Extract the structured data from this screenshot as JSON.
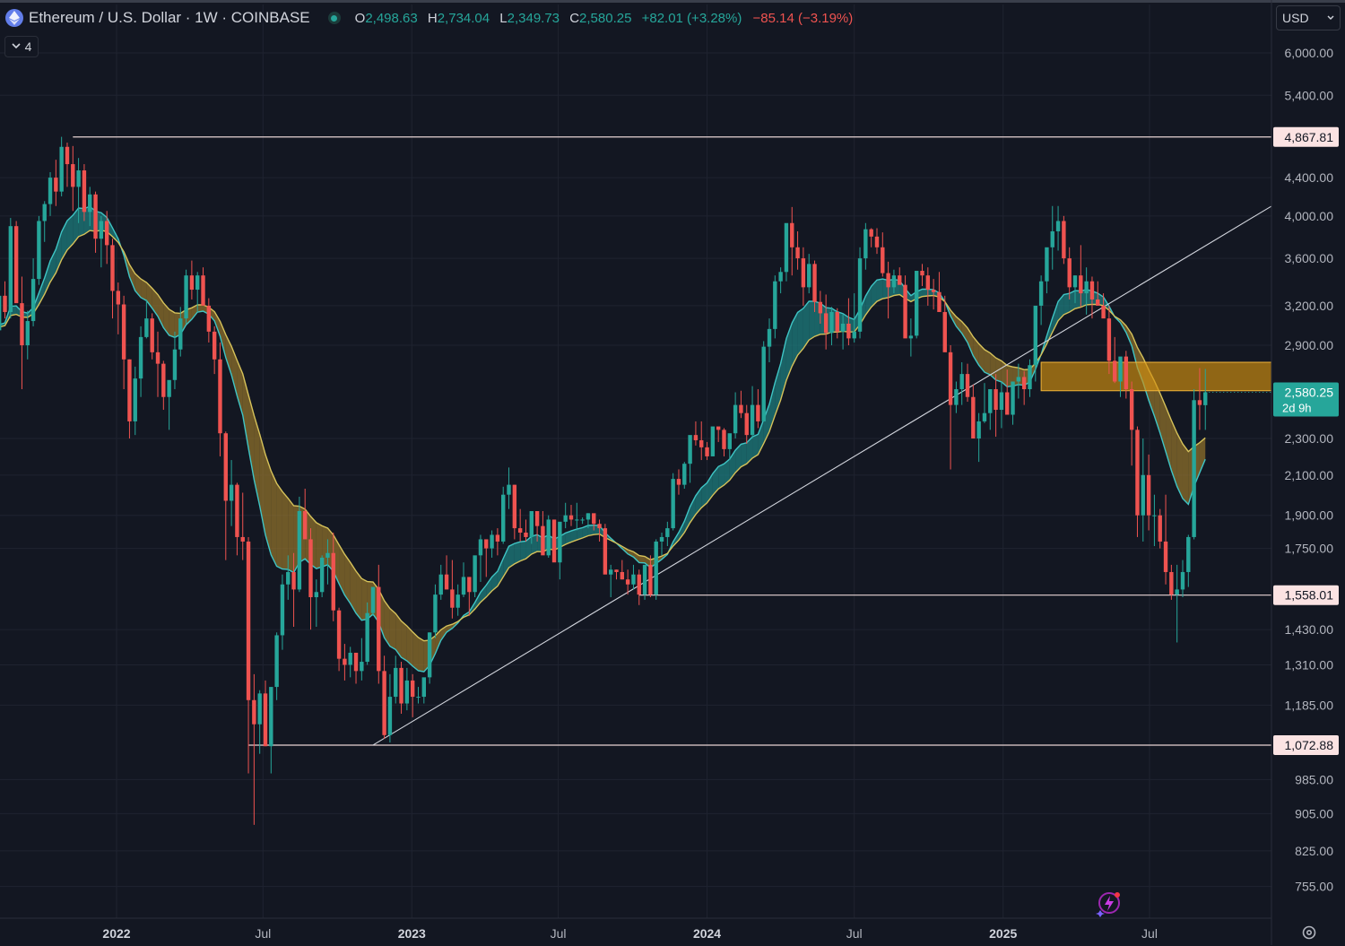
{
  "header": {
    "symbol_title": "Ethereum / U.S. Dollar · 1W · COINBASE",
    "ohlc": {
      "o_label": "O",
      "o_value": "2,498.63",
      "h_label": "H",
      "h_value": "2,734.04",
      "l_label": "L",
      "l_value": "2,349.73",
      "c_label": "C",
      "c_value": "2,580.25",
      "change": "+82.01 (+3.28%)",
      "extra_change": "−85.14 (−3.19%)"
    },
    "indicators_count": "4",
    "currency": "USD"
  },
  "colors": {
    "background": "#131722",
    "up": "#26a69a",
    "down": "#ef5350",
    "grid": "#1f2330",
    "level_line": "#e8d4d4",
    "zone": "#d4900f",
    "ribbon_bull": "#1e8c8c",
    "ribbon_bear": "#a07d2d"
  },
  "chart_data": {
    "type": "candlestick",
    "timeframe": "1W",
    "scale": "log",
    "ylim": [
      700,
      6600
    ],
    "x_tick_labels": [
      "2022",
      "Jul",
      "2023",
      "Jul",
      "2024",
      "Jul",
      "2025",
      "Jul"
    ],
    "x_tick_dates": [
      "2022-01-01",
      "2022-07-01",
      "2023-01-01",
      "2023-07-01",
      "2024-01-01",
      "2024-07-01",
      "2025-01-01",
      "2025-07-01"
    ],
    "y_tick_labels": [
      "6,000.00",
      "5,400.00",
      "4,400.00",
      "4,000.00",
      "3,600.00",
      "3,200.00",
      "2,900.00",
      "2,300.00",
      "2,100.00",
      "1,900.00",
      "1,750.00",
      "1,430.00",
      "1,310.00",
      "1,185.00",
      "985.00",
      "905.00",
      "825.00",
      "755.00"
    ],
    "y_tick_values": [
      6000,
      5400,
      4400,
      4000,
      3600,
      3200,
      2900,
      2300,
      2100,
      1900,
      1750,
      1430,
      1310,
      1185,
      985,
      905,
      825,
      755
    ],
    "last_price": {
      "value": 2580.25,
      "label": "2,580.25",
      "countdown": "2d 9h"
    },
    "horizontal_levels": [
      {
        "value": 4867.81,
        "label": "4,867.81",
        "from": "2021-11-08"
      },
      {
        "value": 1558.01,
        "label": "1,558.01",
        "from": "2023-10-09"
      },
      {
        "value": 1072.88,
        "label": "1,072.88",
        "from": "2022-06-13"
      }
    ],
    "zone": {
      "from": "2025-02-17",
      "top": 2780,
      "bottom": 2590
    },
    "trendline": {
      "p1": {
        "date": "2022-11-14",
        "value": 1073
      },
      "p2": {
        "date": "2025-08-04",
        "value": 3560
      }
    },
    "start_date": "2021-08-02",
    "weeks": [
      [
        3170,
        3240,
        2850,
        3010
      ],
      [
        3010,
        3350,
        2950,
        3280
      ],
      [
        3280,
        3400,
        3100,
        3150
      ],
      [
        3150,
        3980,
        3100,
        3900
      ],
      [
        3900,
        3950,
        3300,
        3220
      ],
      [
        3220,
        3440,
        2600,
        2900
      ],
      [
        2900,
        3160,
        2800,
        3080
      ],
      [
        3080,
        3600,
        3040,
        3420
      ],
      [
        3420,
        4000,
        3370,
        3950
      ],
      [
        3950,
        4150,
        3750,
        4120
      ],
      [
        4120,
        4460,
        4000,
        4400
      ],
      [
        4400,
        4600,
        4100,
        4250
      ],
      [
        4250,
        4870,
        4200,
        4750
      ],
      [
        4750,
        4800,
        4300,
        4550
      ],
      [
        4550,
        4760,
        4050,
        4300
      ],
      [
        4300,
        4620,
        3930,
        4480
      ],
      [
        4480,
        4550,
        3950,
        4040
      ],
      [
        4040,
        4300,
        3900,
        4220
      ],
      [
        4220,
        4250,
        3650,
        3780
      ],
      [
        3780,
        4000,
        3520,
        3950
      ],
      [
        3950,
        4050,
        3550,
        3720
      ],
      [
        3720,
        3780,
        3100,
        3320
      ],
      [
        3320,
        3390,
        2980,
        3210
      ],
      [
        3210,
        3280,
        2600,
        2800
      ],
      [
        2800,
        2800,
        2300,
        2400
      ],
      [
        2400,
        2750,
        2320,
        2670
      ],
      [
        2670,
        3040,
        2550,
        2960
      ],
      [
        2960,
        3250,
        2950,
        3100
      ],
      [
        3100,
        3140,
        2800,
        2850
      ],
      [
        2850,
        3000,
        2550,
        2770
      ],
      [
        2770,
        2790,
        2470,
        2550
      ],
      [
        2550,
        2620,
        2350,
        2660
      ],
      [
        2660,
        3000,
        2600,
        2870
      ],
      [
        2870,
        3190,
        2820,
        3100
      ],
      [
        3100,
        3500,
        3060,
        3450
      ],
      [
        3450,
        3580,
        3250,
        3330
      ],
      [
        3330,
        3480,
        3150,
        3450
      ],
      [
        3450,
        3520,
        3280,
        3200
      ],
      [
        3200,
        3260,
        2920,
        3000
      ],
      [
        3000,
        3040,
        2700,
        2800
      ],
      [
        2800,
        2920,
        2200,
        2330
      ],
      [
        2330,
        2340,
        1700,
        1970
      ],
      [
        1970,
        2180,
        1850,
        2050
      ],
      [
        2050,
        2060,
        1720,
        1800
      ],
      [
        1800,
        2010,
        1700,
        1780
      ],
      [
        1780,
        1800,
        1000,
        1200
      ],
      [
        1200,
        1280,
        880,
        1130
      ],
      [
        1130,
        1230,
        1050,
        1220
      ],
      [
        1220,
        1260,
        1070,
        1070
      ],
      [
        1070,
        1180,
        1000,
        1240
      ],
      [
        1240,
        1420,
        1200,
        1410
      ],
      [
        1410,
        1640,
        1360,
        1600
      ],
      [
        1600,
        1720,
        1540,
        1650
      ],
      [
        1650,
        1730,
        1440,
        1580
      ],
      [
        1580,
        1990,
        1570,
        1920
      ],
      [
        1920,
        2030,
        1790,
        1790
      ],
      [
        1790,
        1840,
        1430,
        1550
      ],
      [
        1550,
        1620,
        1440,
        1570
      ],
      [
        1570,
        1720,
        1550,
        1710
      ],
      [
        1710,
        1790,
        1600,
        1730
      ],
      [
        1730,
        1820,
        1460,
        1500
      ],
      [
        1500,
        1510,
        1290,
        1330
      ],
      [
        1330,
        1380,
        1260,
        1310
      ],
      [
        1310,
        1370,
        1270,
        1350
      ],
      [
        1350,
        1340,
        1250,
        1290
      ],
      [
        1290,
        1400,
        1260,
        1320
      ],
      [
        1320,
        1530,
        1310,
        1490
      ],
      [
        1490,
        1560,
        1480,
        1590
      ],
      [
        1590,
        1680,
        1250,
        1290
      ],
      [
        1290,
        1340,
        1090,
        1100
      ],
      [
        1100,
        1280,
        1080,
        1210
      ],
      [
        1210,
        1340,
        1190,
        1300
      ],
      [
        1300,
        1320,
        1160,
        1190
      ],
      [
        1190,
        1300,
        1170,
        1260
      ],
      [
        1260,
        1280,
        1150,
        1210
      ],
      [
        1210,
        1240,
        1190,
        1210
      ],
      [
        1210,
        1250,
        1190,
        1270
      ],
      [
        1270,
        1420,
        1250,
        1420
      ],
      [
        1420,
        1600,
        1400,
        1560
      ],
      [
        1560,
        1680,
        1540,
        1640
      ],
      [
        1640,
        1720,
        1580,
        1580
      ],
      [
        1580,
        1700,
        1470,
        1510
      ],
      [
        1510,
        1600,
        1480,
        1560
      ],
      [
        1560,
        1690,
        1550,
        1630
      ],
      [
        1630,
        1620,
        1480,
        1570
      ],
      [
        1570,
        1680,
        1550,
        1720
      ],
      [
        1720,
        1810,
        1610,
        1790
      ],
      [
        1790,
        1780,
        1630,
        1750
      ],
      [
        1750,
        1830,
        1710,
        1810
      ],
      [
        1810,
        1840,
        1720,
        1780
      ],
      [
        1780,
        2040,
        1770,
        2000
      ],
      [
        2000,
        2140,
        1930,
        2050
      ],
      [
        2050,
        2050,
        1790,
        1840
      ],
      [
        1840,
        1930,
        1780,
        1820
      ],
      [
        1820,
        1880,
        1780,
        1800
      ],
      [
        1800,
        1900,
        1770,
        1920
      ],
      [
        1920,
        1900,
        1780,
        1850
      ],
      [
        1850,
        1920,
        1780,
        1720
      ],
      [
        1720,
        1900,
        1710,
        1880
      ],
      [
        1880,
        1880,
        1760,
        1690
      ],
      [
        1690,
        1810,
        1620,
        1870
      ],
      [
        1870,
        1960,
        1840,
        1900
      ],
      [
        1900,
        1950,
        1850,
        1880
      ],
      [
        1880,
        1960,
        1830,
        1880
      ],
      [
        1880,
        1890,
        1860,
        1880
      ],
      [
        1880,
        1910,
        1840,
        1910
      ],
      [
        1910,
        1890,
        1830,
        1860
      ],
      [
        1860,
        1880,
        1780,
        1840
      ],
      [
        1840,
        1860,
        1700,
        1640
      ],
      [
        1640,
        1680,
        1550,
        1660
      ],
      [
        1660,
        1660,
        1620,
        1650
      ],
      [
        1650,
        1700,
        1620,
        1620
      ],
      [
        1620,
        1660,
        1560,
        1600
      ],
      [
        1600,
        1680,
        1580,
        1640
      ],
      [
        1640,
        1660,
        1520,
        1560
      ],
      [
        1560,
        1680,
        1540,
        1680
      ],
      [
        1680,
        1720,
        1550,
        1560
      ],
      [
        1560,
        1790,
        1540,
        1780
      ],
      [
        1780,
        1820,
        1720,
        1800
      ],
      [
        1800,
        1870,
        1760,
        1840
      ],
      [
        1840,
        2110,
        1830,
        2080
      ],
      [
        2080,
        2130,
        2000,
        2050
      ],
      [
        2050,
        2170,
        2030,
        2160
      ],
      [
        2160,
        2220,
        2060,
        2320
      ],
      [
        2320,
        2400,
        2260,
        2290
      ],
      [
        2290,
        2400,
        2180,
        2250
      ],
      [
        2250,
        2280,
        2180,
        2200
      ],
      [
        2200,
        2340,
        2200,
        2370
      ],
      [
        2370,
        2360,
        2280,
        2350
      ],
      [
        2350,
        2360,
        2200,
        2240
      ],
      [
        2240,
        2320,
        2180,
        2330
      ],
      [
        2330,
        2580,
        2300,
        2500
      ],
      [
        2500,
        2590,
        2420,
        2450
      ],
      [
        2450,
        2500,
        2270,
        2320
      ],
      [
        2320,
        2620,
        2300,
        2500
      ],
      [
        2500,
        2600,
        2360,
        2400
      ],
      [
        2400,
        2930,
        2400,
        2890
      ],
      [
        2890,
        3100,
        2780,
        3020
      ],
      [
        3020,
        3450,
        2950,
        3400
      ],
      [
        3400,
        3520,
        3300,
        3480
      ],
      [
        3480,
        3800,
        3400,
        3930
      ],
      [
        3930,
        4090,
        3450,
        3700
      ],
      [
        3700,
        3850,
        3500,
        3600
      ],
      [
        3600,
        3700,
        3200,
        3350
      ],
      [
        3350,
        3640,
        3300,
        3550
      ],
      [
        3550,
        3580,
        3150,
        3230
      ],
      [
        3230,
        3320,
        3060,
        3140
      ],
      [
        3140,
        3290,
        2870,
        2990
      ],
      [
        2990,
        3190,
        2900,
        3150
      ],
      [
        3150,
        3180,
        2950,
        3000
      ],
      [
        3000,
        3130,
        2870,
        3060
      ],
      [
        3060,
        3260,
        2900,
        2950
      ],
      [
        2950,
        3300,
        2920,
        3000
      ],
      [
        3000,
        3700,
        2950,
        3600
      ],
      [
        3600,
        3930,
        3500,
        3870
      ],
      [
        3870,
        3880,
        3700,
        3800
      ],
      [
        3800,
        3880,
        3640,
        3700
      ],
      [
        3700,
        3840,
        3440,
        3470
      ],
      [
        3470,
        3570,
        3100,
        3350
      ],
      [
        3350,
        3500,
        3300,
        3450
      ],
      [
        3450,
        3520,
        3400,
        3370
      ],
      [
        3370,
        3450,
        3100,
        2950
      ],
      [
        2950,
        3100,
        2820,
        2970
      ],
      [
        2970,
        3450,
        2950,
        3490
      ],
      [
        3490,
        3550,
        3360,
        3450
      ],
      [
        3450,
        3520,
        3200,
        3330
      ],
      [
        3330,
        3420,
        3170,
        3310
      ],
      [
        3310,
        3480,
        3180,
        3150
      ],
      [
        3150,
        3280,
        3060,
        2850
      ],
      [
        2850,
        2900,
        2130,
        2500
      ],
      [
        2500,
        2650,
        2450,
        2600
      ],
      [
        2600,
        2780,
        2500,
        2700
      ],
      [
        2700,
        2770,
        2520,
        2550
      ],
      [
        2550,
        2630,
        2500,
        2300
      ],
      [
        2300,
        2450,
        2170,
        2400
      ],
      [
        2400,
        2640,
        2390,
        2450
      ],
      [
        2450,
        2560,
        2350,
        2600
      ],
      [
        2600,
        2700,
        2310,
        2470
      ],
      [
        2470,
        2650,
        2360,
        2580
      ],
      [
        2580,
        2730,
        2440,
        2440
      ],
      [
        2440,
        2560,
        2380,
        2650
      ],
      [
        2650,
        2770,
        2540,
        2680
      ],
      [
        2680,
        2720,
        2500,
        2600
      ],
      [
        2600,
        2800,
        2550,
        2760
      ],
      [
        2760,
        3060,
        2650,
        3200
      ],
      [
        3200,
        3450,
        3050,
        3400
      ],
      [
        3400,
        3570,
        3300,
        3700
      ],
      [
        3700,
        4100,
        3500,
        3850
      ],
      [
        3850,
        4100,
        3670,
        3950
      ],
      [
        3950,
        4000,
        3550,
        3600
      ],
      [
        3600,
        3700,
        3250,
        3350
      ],
      [
        3350,
        3450,
        3220,
        3450
      ],
      [
        3450,
        3720,
        3190,
        3300
      ],
      [
        3300,
        3520,
        3130,
        3400
      ],
      [
        3400,
        3440,
        3100,
        3250
      ],
      [
        3250,
        3400,
        3200,
        3200
      ],
      [
        3200,
        3300,
        3150,
        3100
      ],
      [
        3100,
        3200,
        2700,
        2790
      ],
      [
        2790,
        2960,
        2640,
        2650
      ],
      [
        2650,
        2750,
        2550,
        2820
      ],
      [
        2820,
        2860,
        2540,
        2600
      ],
      [
        2600,
        2650,
        2150,
        2350
      ],
      [
        2350,
        2370,
        1800,
        1900
      ],
      [
        1900,
        2300,
        1780,
        2100
      ],
      [
        2100,
        2210,
        1830,
        1900
      ],
      [
        1900,
        2000,
        1760,
        1900
      ],
      [
        1900,
        1930,
        1750,
        1780
      ],
      [
        1780,
        2000,
        1600,
        1650
      ],
      [
        1650,
        1680,
        1540,
        1560
      ],
      [
        1560,
        1680,
        1385,
        1580
      ],
      [
        1580,
        1700,
        1550,
        1650
      ],
      [
        1650,
        1810,
        1590,
        1800
      ],
      [
        1800,
        2600,
        1790,
        2530
      ],
      [
        2530,
        2740,
        2350,
        2500
      ],
      [
        2498.63,
        2734.04,
        2349.73,
        2580.25
      ]
    ],
    "ma_fast": [],
    "ma_slow": []
  }
}
